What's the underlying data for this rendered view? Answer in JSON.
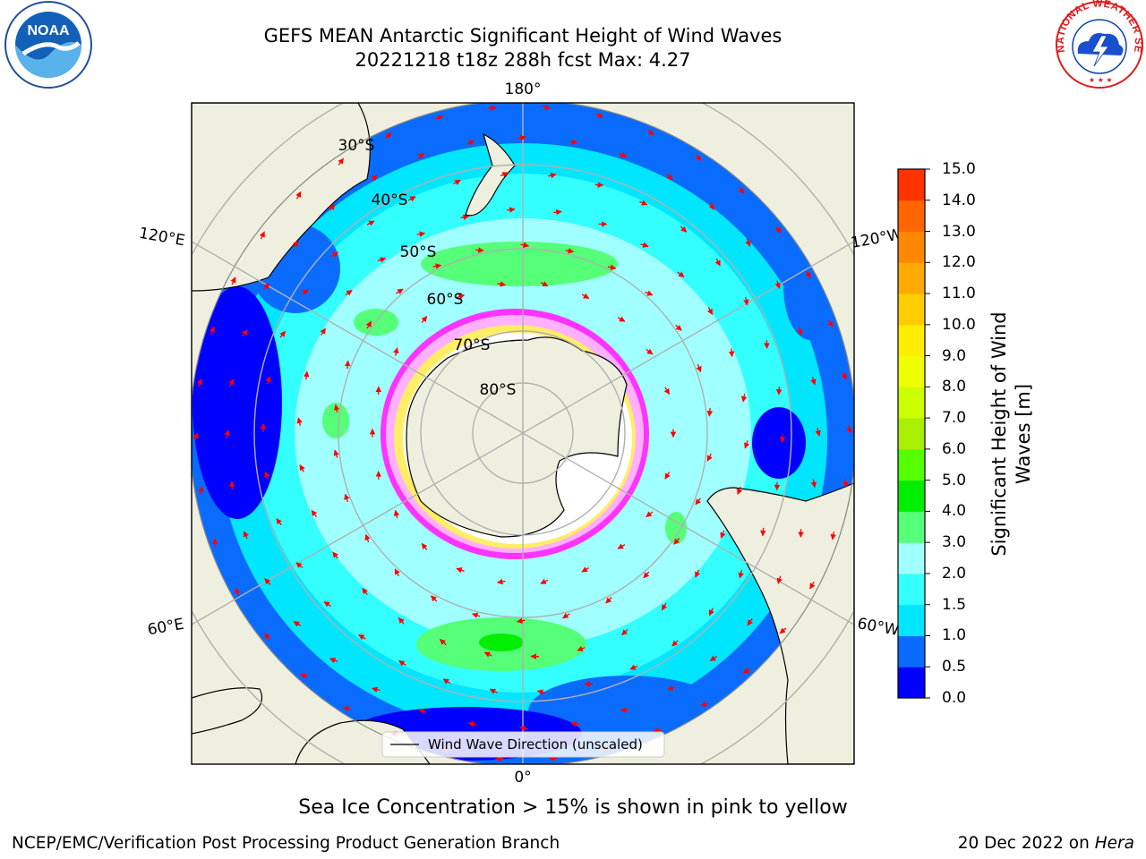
{
  "title": {
    "line1": "GEFS MEAN Antarctic Significant Height of Wind Waves",
    "line2": "20221218 t18z 288h fcst   Max: 4.27"
  },
  "map": {
    "projection": "south-polar-stereographic",
    "meridian_labels": [
      "180°",
      "120°E",
      "120°W",
      "60°E",
      "60°W",
      "0°"
    ],
    "parallel_labels": [
      "30°S",
      "40°S",
      "50°S",
      "60°S",
      "70°S",
      "80°S"
    ],
    "legend": "Wind Wave Direction (unscaled)",
    "land_color": "#efefdf",
    "ice_colors": [
      "#ff33ff",
      "#ffb0ff",
      "#ffee66",
      "#ffffff"
    ],
    "arrow_color": "#ff0000",
    "grid_color": "#b0b0b0"
  },
  "colorbar": {
    "label_line1": "Significant Height of Wind",
    "label_line2": "Waves [m]",
    "ticks": [
      "0.0",
      "0.5",
      "1.0",
      "1.5",
      "2.0",
      "3.0",
      "4.0",
      "5.0",
      "6.0",
      "7.0",
      "8.0",
      "9.0",
      "10.0",
      "11.0",
      "12.0",
      "13.0",
      "14.0",
      "15.0"
    ],
    "colors": [
      "#0000ff",
      "#0a6cff",
      "#00e6ff",
      "#33ffff",
      "#a0ffff",
      "#55ff77",
      "#00ee00",
      "#55ff00",
      "#aaee00",
      "#ccff00",
      "#eeff00",
      "#ffee00",
      "#ffcc00",
      "#ffaa00",
      "#ff8800",
      "#ff6600",
      "#ff3300",
      "#ff0000"
    ]
  },
  "caption": "Sea Ice Concentration > 15% is shown in pink to yellow",
  "credit": "NCEP/EMC/Verification Post Processing Product Generation Branch",
  "date": {
    "text": "20 Dec 2022 on",
    "host": "Hera"
  },
  "logos": {
    "noaa": "NOAA",
    "nws": "NATIONAL WEATHER SERVICE"
  }
}
